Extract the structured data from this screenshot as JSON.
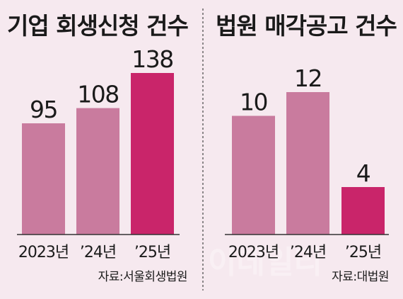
{
  "chart_data": [
    {
      "type": "bar",
      "title": "기업 회생신청 건수",
      "categories": [
        "2023년",
        "’24년",
        "’25년"
      ],
      "values": [
        95,
        108,
        138
      ],
      "source": "자료:서울회생법원",
      "ylim": [
        0,
        138
      ],
      "grid": false,
      "colors": [
        "#c97b9e",
        "#c97b9e",
        "#c9256a"
      ]
    },
    {
      "type": "bar",
      "title": "법원 매각공고 건수",
      "categories": [
        "2023년",
        "’24년",
        "’25년"
      ],
      "values": [
        10,
        12,
        4
      ],
      "source": "자료:대법원",
      "ylim": [
        0,
        12
      ],
      "grid": false,
      "colors": [
        "#c97b9e",
        "#c97b9e",
        "#c9256a"
      ]
    }
  ],
  "watermark": "이데일리",
  "colors": {
    "background": "#f6e9ef",
    "baseline": "#333333",
    "divider": "#444444"
  }
}
